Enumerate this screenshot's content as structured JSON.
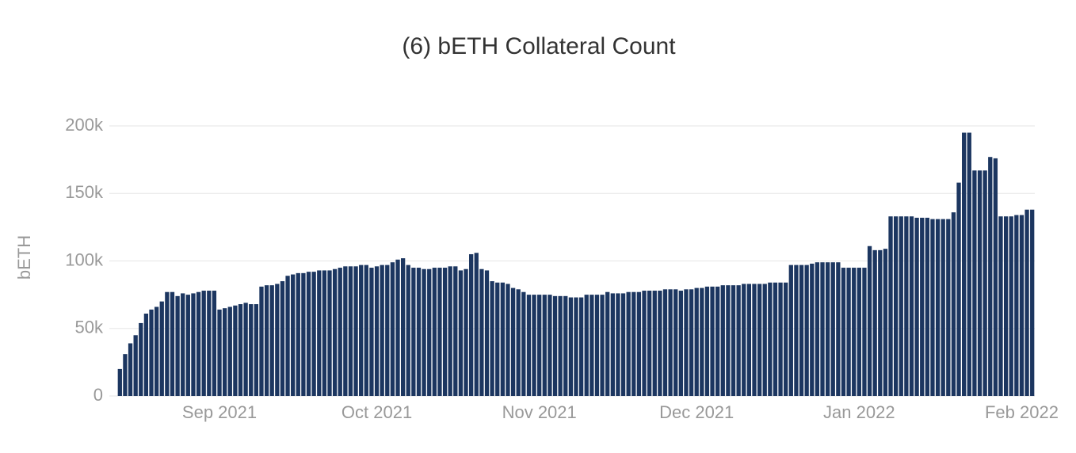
{
  "chart_data": {
    "type": "bar",
    "title": "(6) bETH Collateral Count",
    "y_label": "bETH",
    "color": "#1c3660",
    "grid": true,
    "ylim": [
      0,
      200000
    ],
    "yticks": [
      0,
      {
        "value": 50000,
        "label": "50k"
      },
      {
        "value": 100000,
        "label": "100k"
      },
      {
        "value": 150000,
        "label": "150k"
      },
      {
        "value": 200000,
        "label": "200k"
      }
    ],
    "categories": [
      null,
      null,
      null,
      null,
      null,
      null,
      null,
      null,
      null,
      null,
      null,
      null,
      null,
      null,
      null,
      null,
      null,
      null,
      null,
      "Sep 2021",
      null,
      null,
      null,
      null,
      null,
      null,
      null,
      null,
      null,
      null,
      null,
      null,
      null,
      null,
      null,
      null,
      null,
      null,
      null,
      null,
      null,
      null,
      null,
      null,
      null,
      null,
      null,
      null,
      null,
      "Oct 2021",
      null,
      null,
      null,
      null,
      null,
      null,
      null,
      null,
      null,
      null,
      null,
      null,
      null,
      null,
      null,
      null,
      null,
      null,
      null,
      null,
      null,
      null,
      null,
      null,
      null,
      null,
      null,
      null,
      null,
      null,
      "Nov 2021",
      null,
      null,
      null,
      null,
      null,
      null,
      null,
      null,
      null,
      null,
      null,
      null,
      null,
      null,
      null,
      null,
      null,
      null,
      null,
      null,
      null,
      null,
      null,
      null,
      null,
      null,
      null,
      null,
      null,
      "Dec 2021",
      null,
      null,
      null,
      null,
      null,
      null,
      null,
      null,
      null,
      null,
      null,
      null,
      null,
      null,
      null,
      null,
      null,
      null,
      null,
      null,
      null,
      null,
      null,
      null,
      null,
      null,
      null,
      null,
      null,
      null,
      "Jan 2022",
      null,
      null,
      null,
      null,
      null,
      null,
      null,
      null,
      null,
      null,
      null,
      null,
      null,
      null,
      null,
      null,
      null,
      null,
      null,
      null,
      null,
      null,
      null,
      null,
      null,
      null,
      null,
      null,
      null,
      null,
      "Feb 2022",
      null,
      null
    ],
    "values": [
      20000,
      31000,
      39000,
      45000,
      54000,
      61000,
      64000,
      66000,
      70000,
      77000,
      77000,
      74000,
      76000,
      75000,
      76000,
      77000,
      78000,
      78000,
      78000,
      64000,
      65000,
      66000,
      67000,
      68000,
      69000,
      68000,
      68000,
      81000,
      82000,
      82000,
      83000,
      85000,
      89000,
      90000,
      91000,
      91000,
      92000,
      92000,
      93000,
      93000,
      93000,
      94000,
      95000,
      96000,
      96000,
      96000,
      97000,
      97000,
      95000,
      96000,
      97000,
      97000,
      99000,
      101000,
      102000,
      97000,
      95000,
      95000,
      94000,
      94000,
      95000,
      95000,
      95000,
      96000,
      96000,
      93000,
      94000,
      105000,
      106000,
      94000,
      93000,
      85000,
      84000,
      84000,
      83000,
      80000,
      79000,
      77000,
      75000,
      75000,
      75000,
      75000,
      75000,
      74000,
      74000,
      74000,
      73000,
      73000,
      73000,
      75000,
      75000,
      75000,
      75000,
      77000,
      76000,
      76000,
      76000,
      77000,
      77000,
      77000,
      78000,
      78000,
      78000,
      78000,
      79000,
      79000,
      79000,
      78000,
      79000,
      79000,
      80000,
      80000,
      81000,
      81000,
      81000,
      82000,
      82000,
      82000,
      82000,
      83000,
      83000,
      83000,
      83000,
      83000,
      84000,
      84000,
      84000,
      84000,
      97000,
      97000,
      97000,
      97000,
      98000,
      99000,
      99000,
      99000,
      99000,
      99000,
      95000,
      95000,
      95000,
      95000,
      95000,
      111000,
      108000,
      108000,
      109000,
      133000,
      133000,
      133000,
      133000,
      133000,
      132000,
      132000,
      132000,
      131000,
      131000,
      131000,
      131000,
      136000,
      158000,
      195000,
      195000,
      167000,
      167000,
      167000,
      177000,
      176000,
      133000,
      133000,
      133000,
      134000,
      134000,
      138000,
      138000
    ]
  }
}
